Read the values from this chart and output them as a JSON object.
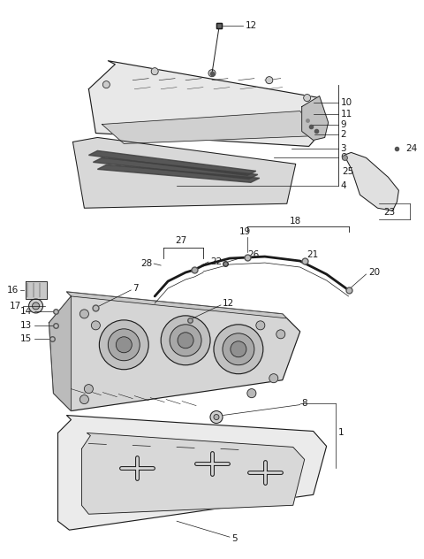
{
  "bg_color": "#ffffff",
  "fig_width": 4.8,
  "fig_height": 6.32,
  "dpi": 100,
  "line_color": "#1a1a1a",
  "label_fontsize": 7.5
}
